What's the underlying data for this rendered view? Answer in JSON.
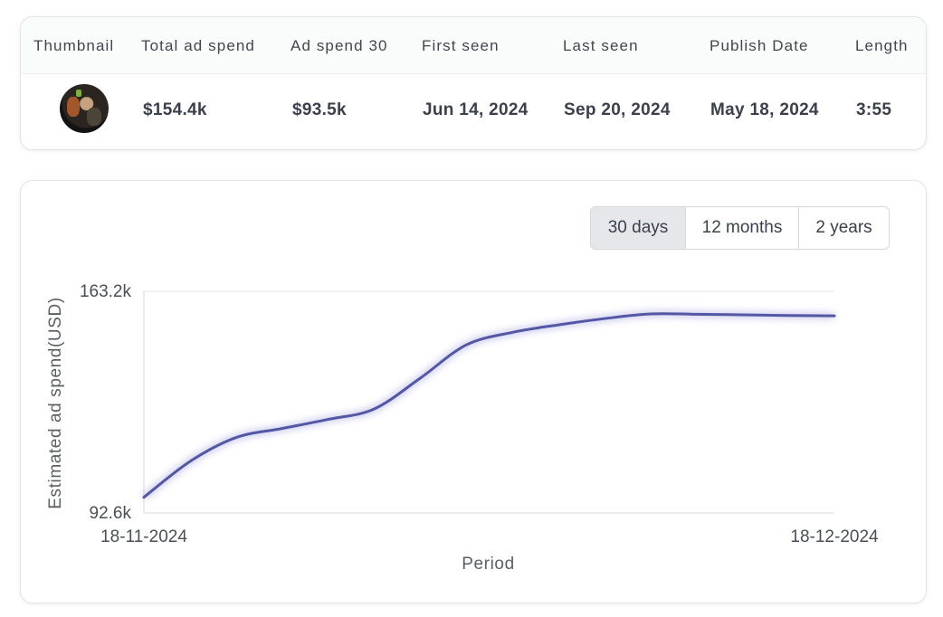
{
  "table": {
    "headers": [
      "Thumbnail",
      "Total ad spend",
      "Ad spend 30",
      "First seen",
      "Last seen",
      "Publish Date",
      "Length"
    ],
    "row": {
      "total_ad_spend": "$154.4k",
      "ad_spend_30": "$93.5k",
      "first_seen": "Jun 14, 2024",
      "last_seen": "Sep 20, 2024",
      "publish_date": "May 18, 2024",
      "length": "3:55"
    }
  },
  "range_selector": {
    "options": [
      "30 days",
      "12 months",
      "2 years"
    ],
    "selected": "30 days"
  },
  "colors": {
    "line": "#5457a3",
    "grid": "#e4e6e9",
    "selected_button_bg": "#e6e7ea"
  },
  "chart_data": {
    "type": "line",
    "title": "",
    "xlabel": "Period",
    "ylabel": "Estimated ad spend(USD)",
    "x_ticks": [
      "18-11-2024",
      "18-12-2024"
    ],
    "y_ticks": [
      "163.2k",
      "92.6k"
    ],
    "ylim": [
      92600,
      163200
    ],
    "x_range": [
      "2024-11-18",
      "2024-12-18"
    ],
    "grid": "horizontal",
    "legend": "none",
    "series": [
      {
        "points": [
          [
            "2024-11-18",
            97600
          ],
          [
            "2024-11-20",
            109000
          ],
          [
            "2024-11-22",
            116600
          ],
          [
            "2024-11-24",
            119500
          ],
          [
            "2024-11-26",
            122400
          ],
          [
            "2024-11-28",
            125700
          ],
          [
            "2024-11-30",
            135500
          ],
          [
            "2024-12-02",
            146100
          ],
          [
            "2024-12-04",
            150100
          ],
          [
            "2024-12-06",
            152500
          ],
          [
            "2024-12-08",
            154500
          ],
          [
            "2024-12-10",
            156000
          ],
          [
            "2024-12-12",
            155900
          ],
          [
            "2024-12-14",
            155700
          ],
          [
            "2024-12-16",
            155500
          ],
          [
            "2024-12-18",
            155400
          ]
        ]
      }
    ]
  }
}
